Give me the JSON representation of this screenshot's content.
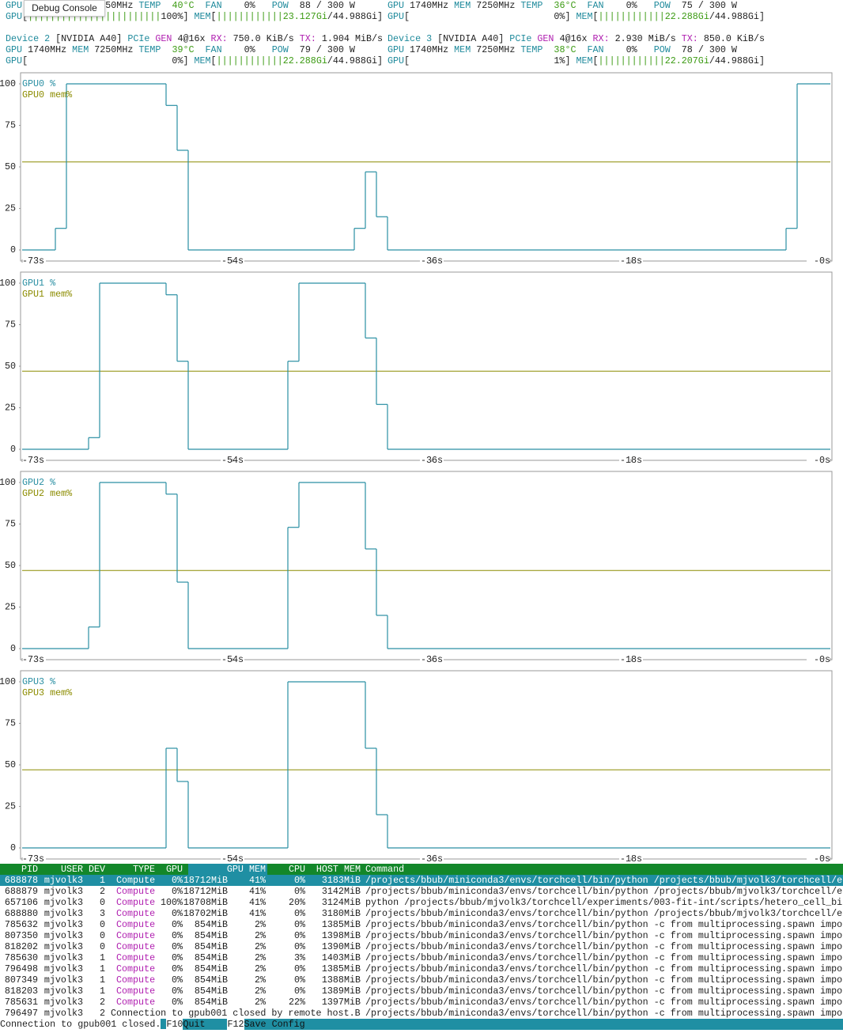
{
  "tooltip": "Debug Console",
  "device_rows": [
    {
      "left": [
        [
          " GPU",
          "#1f8a9c"
        ],
        [
          "50MHz"
        ],
        [
          " TEMP",
          "#1f8a9c"
        ],
        [
          "  40°C",
          "#3b9a12"
        ],
        [
          "  FAN",
          "#1f8a9c"
        ],
        [
          "    0%"
        ],
        [
          "   POW",
          "#1f8a9c"
        ],
        [
          "  88 / 300 W"
        ]
      ],
      "right": [
        [
          "GPU",
          "#1f8a9c"
        ],
        [
          " 1740MHz"
        ],
        [
          " MEM",
          "#1f8a9c"
        ],
        [
          " 7250MHz"
        ],
        [
          " TEMP",
          "#1f8a9c"
        ],
        [
          "  36°C",
          "#3b9a12"
        ],
        [
          "  FAN",
          "#1f8a9c"
        ],
        [
          "    0%"
        ],
        [
          "   POW",
          "#1f8a9c"
        ],
        [
          "  75 / 300 W"
        ]
      ]
    },
    {
      "left": [
        [
          " GPU",
          "#1f8a9c"
        ],
        [
          "["
        ],
        [
          "||||||||||||||||||||||||",
          "#3b9a12"
        ],
        [
          "100%]"
        ],
        [
          " MEM",
          "#1f8a9c"
        ],
        [
          "["
        ],
        [
          "||||||||||||",
          "#3b9a12"
        ],
        [
          "23.127Gi",
          "#3b9a12"
        ],
        [
          "/44.988Gi]"
        ]
      ],
      "right": [
        [
          "GPU",
          "#1f8a9c"
        ],
        [
          "["
        ],
        [
          "                          0%]"
        ],
        [
          " MEM",
          "#1f8a9c"
        ],
        [
          "["
        ],
        [
          "||||||||||||",
          "#3b9a12"
        ],
        [
          "22.288Gi",
          "#3b9a12"
        ],
        [
          "/44.988Gi]"
        ]
      ]
    },
    {
      "left": [
        [
          " Device 2",
          "#1f8a9c"
        ],
        [
          " [NVIDIA A40]"
        ],
        [
          " PCIe",
          "#1f8a9c"
        ],
        [
          " GEN",
          "#b01fb0"
        ],
        [
          " 4@16x"
        ],
        [
          " RX:",
          "#b01fb0"
        ],
        [
          " 750.0 KiB/s"
        ],
        [
          " TX:",
          "#b01fb0"
        ],
        [
          " 1.904 MiB/s"
        ]
      ],
      "right": [
        [
          "Device 3",
          "#1f8a9c"
        ],
        [
          " [NVIDIA A40]"
        ],
        [
          " PCIe",
          "#1f8a9c"
        ],
        [
          " GEN",
          "#b01fb0"
        ],
        [
          " 4@16x"
        ],
        [
          " RX:",
          "#b01fb0"
        ],
        [
          " 2.930 MiB/s"
        ],
        [
          " TX:",
          "#b01fb0"
        ],
        [
          " 850.0 KiB/s"
        ]
      ]
    },
    {
      "left": [
        [
          " GPU",
          "#1f8a9c"
        ],
        [
          " 1740MHz"
        ],
        [
          " MEM",
          "#1f8a9c"
        ],
        [
          " 7250MHz"
        ],
        [
          " TEMP",
          "#1f8a9c"
        ],
        [
          "  39°C",
          "#3b9a12"
        ],
        [
          "  FAN",
          "#1f8a9c"
        ],
        [
          "    0%"
        ],
        [
          "   POW",
          "#1f8a9c"
        ],
        [
          "  79 / 300 W"
        ]
      ],
      "right": [
        [
          "GPU",
          "#1f8a9c"
        ],
        [
          " 1740MHz"
        ],
        [
          " MEM",
          "#1f8a9c"
        ],
        [
          " 7250MHz"
        ],
        [
          " TEMP",
          "#1f8a9c"
        ],
        [
          "  38°C",
          "#3b9a12"
        ],
        [
          "  FAN",
          "#1f8a9c"
        ],
        [
          "    0%"
        ],
        [
          "   POW",
          "#1f8a9c"
        ],
        [
          "  78 / 300 W"
        ]
      ]
    },
    {
      "left": [
        [
          " GPU",
          "#1f8a9c"
        ],
        [
          "["
        ],
        [
          "                          0%]"
        ],
        [
          " MEM",
          "#1f8a9c"
        ],
        [
          "["
        ],
        [
          "||||||||||||",
          "#3b9a12"
        ],
        [
          "22.288Gi",
          "#3b9a12"
        ],
        [
          "/44.988Gi]"
        ]
      ],
      "right": [
        [
          "GPU",
          "#1f8a9c"
        ],
        [
          "["
        ],
        [
          "                          1%]"
        ],
        [
          " MEM",
          "#1f8a9c"
        ],
        [
          "["
        ],
        [
          "||||||||||||",
          "#3b9a12"
        ],
        [
          "22.207Gi",
          "#3b9a12"
        ],
        [
          "/44.988Gi]"
        ]
      ]
    }
  ],
  "charts": {
    "xlim": [
      -73,
      0
    ],
    "ylim": [
      0,
      100
    ],
    "yticks": [
      0,
      25,
      50,
      75,
      100
    ],
    "xticks": [
      {
        "value": -73,
        "label": "-73s"
      },
      {
        "value": -54,
        "label": "-54s"
      },
      {
        "value": -36,
        "label": "-36s"
      },
      {
        "value": -18,
        "label": "-18s"
      },
      {
        "value": 0,
        "label": "-0s"
      }
    ],
    "util_color": "#2a8fa3",
    "mem_color": "#8c8c00",
    "panels": [
      {
        "label": "GPU0 %",
        "mem_label": "GPU0 mem%",
        "x": [
          -73,
          -70,
          -69,
          -60,
          -59,
          -58,
          -43,
          -42,
          -41,
          -40,
          -4,
          -3
        ],
        "values": [
          0,
          13,
          100,
          87,
          60,
          0,
          13,
          47,
          20,
          0,
          13,
          100
        ],
        "mem": 53
      },
      {
        "label": "GPU1 %",
        "mem_label": "GPU1 mem%",
        "x": [
          -73,
          -67,
          -66,
          -60,
          -59,
          -58,
          -49,
          -48,
          -42,
          -41,
          -40
        ],
        "values": [
          0,
          7,
          100,
          93,
          53,
          0,
          53,
          100,
          67,
          27,
          0
        ],
        "mem": 47
      },
      {
        "label": "GPU2 %",
        "mem_label": "GPU2 mem%",
        "x": [
          -73,
          -67,
          -66,
          -60,
          -59,
          -58,
          -49,
          -48,
          -42,
          -41,
          -40
        ],
        "values": [
          0,
          13,
          100,
          93,
          40,
          0,
          73,
          100,
          60,
          20,
          0
        ],
        "mem": 47
      },
      {
        "label": "GPU3 %",
        "mem_label": "GPU3 mem%",
        "x": [
          -73,
          -60,
          -59,
          -58,
          -49,
          -42,
          -41,
          -40
        ],
        "values": [
          0,
          60,
          40,
          0,
          100,
          60,
          20,
          0
        ],
        "mem": 47
      }
    ]
  },
  "table": {
    "header": [
      "PID",
      "USER",
      "DEV",
      "TYPE",
      "GPU",
      "GPU MEM",
      "CPU",
      "HOST MEM",
      "Command"
    ],
    "selected_row": 0,
    "rows": [
      [
        "688878",
        "mjvolk3",
        "1",
        "Compute",
        "0%",
        "18712MiB",
        "41%",
        "0%",
        "3183MiB",
        "/projects/bbub/miniconda3/envs/torchcell/bin/python /projects/bbub/mjvolk3/torchcell/e"
      ],
      [
        "688879",
        "mjvolk3",
        "2",
        "Compute",
        "0%",
        "18712MiB",
        "41%",
        "0%",
        "3142MiB",
        "/projects/bbub/miniconda3/envs/torchcell/bin/python /projects/bbub/mjvolk3/torchcell/e"
      ],
      [
        "657106",
        "mjvolk3",
        "0",
        "Compute",
        "100%",
        "18708MiB",
        "41%",
        "20%",
        "3124MiB",
        "python /projects/bbub/mjvolk3/torchcell/experiments/003-fit-int/scripts/hetero_cell_bi"
      ],
      [
        "688880",
        "mjvolk3",
        "3",
        "Compute",
        "0%",
        "18702MiB",
        "41%",
        "0%",
        "3180MiB",
        "/projects/bbub/miniconda3/envs/torchcell/bin/python /projects/bbub/mjvolk3/torchcell/e"
      ],
      [
        "785632",
        "mjvolk3",
        "0",
        "Compute",
        "0%",
        "854MiB",
        "2%",
        "0%",
        "1385MiB",
        "/projects/bbub/miniconda3/envs/torchcell/bin/python -c from multiprocessing.spawn impo"
      ],
      [
        "807350",
        "mjvolk3",
        "0",
        "Compute",
        "0%",
        "854MiB",
        "2%",
        "0%",
        "1398MiB",
        "/projects/bbub/miniconda3/envs/torchcell/bin/python -c from multiprocessing.spawn impo"
      ],
      [
        "818202",
        "mjvolk3",
        "0",
        "Compute",
        "0%",
        "854MiB",
        "2%",
        "0%",
        "1390MiB",
        "/projects/bbub/miniconda3/envs/torchcell/bin/python -c from multiprocessing.spawn impo"
      ],
      [
        "785630",
        "mjvolk3",
        "1",
        "Compute",
        "0%",
        "854MiB",
        "2%",
        "3%",
        "1403MiB",
        "/projects/bbub/miniconda3/envs/torchcell/bin/python -c from multiprocessing.spawn impo"
      ],
      [
        "796498",
        "mjvolk3",
        "1",
        "Compute",
        "0%",
        "854MiB",
        "2%",
        "0%",
        "1385MiB",
        "/projects/bbub/miniconda3/envs/torchcell/bin/python -c from multiprocessing.spawn impo"
      ],
      [
        "807349",
        "mjvolk3",
        "1",
        "Compute",
        "0%",
        "854MiB",
        "2%",
        "0%",
        "1388MiB",
        "/projects/bbub/miniconda3/envs/torchcell/bin/python -c from multiprocessing.spawn impo"
      ],
      [
        "818203",
        "mjvolk3",
        "1",
        "Compute",
        "0%",
        "854MiB",
        "2%",
        "0%",
        "1389MiB",
        "/projects/bbub/miniconda3/envs/torchcell/bin/python -c from multiprocessing.spawn impo"
      ],
      [
        "785631",
        "mjvolk3",
        "2",
        "Compute",
        "0%",
        "854MiB",
        "2%",
        "22%",
        "1397MiB",
        "/projects/bbub/miniconda3/envs/torchcell/bin/python -c from multiprocessing.spawn impo"
      ]
    ],
    "last_row": {
      "cells": [
        "796497",
        "mjvolk3",
        "2"
      ],
      "message": "Connection to gpub001 closed by remote host.B",
      "command": "/projects/bbub/miniconda3/envs/torchcell/bin/python -c from multiprocessing.spawn impo"
    }
  },
  "status": {
    "message": "Connection to gpub001 closed.",
    "keys": [
      {
        "key": "F10",
        "label": "Quit"
      },
      {
        "key": "F12",
        "label": "Save Config"
      }
    ]
  }
}
